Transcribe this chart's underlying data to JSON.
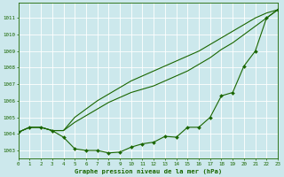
{
  "title": "Graphe pression niveau de la mer (hPa)",
  "x": [
    0,
    1,
    2,
    3,
    4,
    5,
    6,
    7,
    8,
    9,
    10,
    11,
    12,
    13,
    14,
    15,
    16,
    17,
    18,
    19,
    20,
    21,
    22,
    23
  ],
  "line1": [
    1004.1,
    1004.4,
    1004.4,
    1004.2,
    1003.8,
    1003.1,
    1003.0,
    1003.0,
    1002.85,
    1002.9,
    1003.2,
    1003.4,
    1003.5,
    1003.85,
    1003.8,
    1004.4,
    1004.4,
    1005.0,
    1006.3,
    1006.5,
    1008.1,
    1009.0,
    1011.0,
    1011.5
  ],
  "line2": [
    1004.1,
    1004.4,
    1004.4,
    1004.2,
    1004.2,
    1004.7,
    1005.1,
    1005.5,
    1005.9,
    1006.2,
    1006.5,
    1006.7,
    1006.9,
    1007.2,
    1007.5,
    1007.8,
    1008.2,
    1008.6,
    1009.1,
    1009.5,
    1010.0,
    1010.5,
    1011.0,
    1011.5
  ],
  "line3": [
    1004.1,
    1004.4,
    1004.4,
    1004.2,
    1004.2,
    1005.0,
    1005.5,
    1006.0,
    1006.4,
    1006.8,
    1007.2,
    1007.5,
    1007.8,
    1008.1,
    1008.4,
    1008.7,
    1009.0,
    1009.4,
    1009.8,
    1010.2,
    1010.6,
    1011.0,
    1011.3,
    1011.5
  ],
  "ylim": [
    1002.5,
    1011.9
  ],
  "xlim": [
    0,
    23
  ],
  "yticks": [
    1003,
    1004,
    1005,
    1006,
    1007,
    1008,
    1009,
    1010,
    1011
  ],
  "xticks": [
    0,
    1,
    2,
    3,
    4,
    5,
    6,
    7,
    8,
    9,
    10,
    11,
    12,
    13,
    14,
    15,
    16,
    17,
    18,
    19,
    20,
    21,
    22,
    23
  ],
  "line_color": "#1a6600",
  "bg_plot": "#cce8ec",
  "bg_fig": "#cce8ec",
  "grid_color": "#ffffff",
  "title_color": "#1a6600",
  "tick_color": "#1a6600",
  "marker": "D",
  "markersize": 2.0
}
